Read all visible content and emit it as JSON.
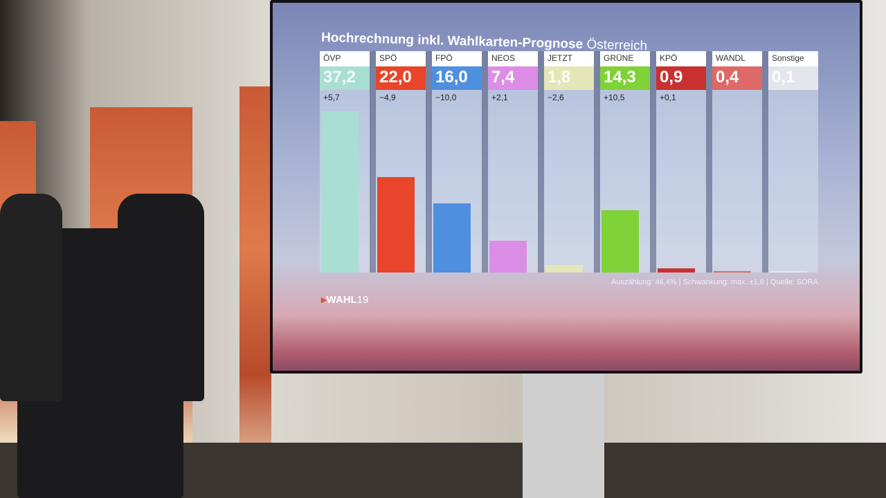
{
  "chart_data": {
    "type": "bar",
    "title": "Hochrechnung inkl. Wahlkarten-Prognose",
    "subtitle": "Österreich",
    "categories": [
      "ÖVP",
      "SPÖ",
      "FPÖ",
      "NEOS",
      "JETZT",
      "GRÜNE",
      "KPÖ",
      "WANDL",
      "Sonstige"
    ],
    "values": [
      37.2,
      22.0,
      16.0,
      7.4,
      1.8,
      14.3,
      0.9,
      0.4,
      0.1
    ],
    "value_labels": [
      "37,2",
      "22,0",
      "16,0",
      "7,4",
      "1,8",
      "14,3",
      "0,9",
      "0,4",
      "0,1"
    ],
    "change_labels": [
      "+5,7",
      "−4,9",
      "−10,0",
      "+2,1",
      "−2,6",
      "+10,5",
      "+0,1",
      "",
      ""
    ],
    "colors": [
      "#a9dfd2",
      "#e8452a",
      "#4f8fe0",
      "#dc8ee6",
      "#e5e6b8",
      "#7fd238",
      "#c8312f",
      "#dd6a66",
      "#e4e6ee"
    ],
    "grid": false,
    "legend": "none",
    "footer": "Auszählung: 46,4% | Schwankung: max. ±1,8 | Quelle: SORA"
  },
  "logo": {
    "prefix": "WAHL",
    "suffix": "19"
  }
}
